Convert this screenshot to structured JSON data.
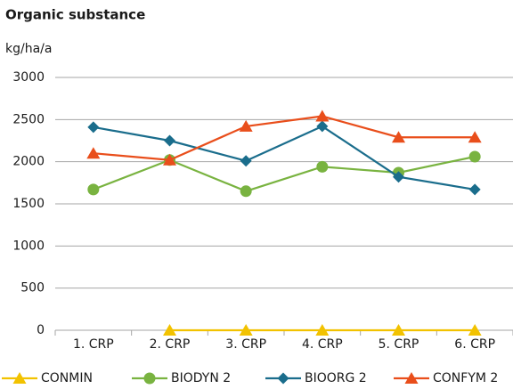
{
  "chart_data": {
    "type": "line",
    "title": "Organic substance",
    "y_label": "kg/ha/a",
    "categories": [
      "1. CRP",
      "2. CRP",
      "3. CRP",
      "4. CRP",
      "5. CRP",
      "6. CRP"
    ],
    "series": [
      {
        "name": "CONMIN",
        "color": "#f2c200",
        "marker": "triangle",
        "values": [
          null,
          0,
          0,
          0,
          0,
          0
        ]
      },
      {
        "name": "BIODYN 2",
        "color": "#79b340",
        "marker": "circle",
        "values": [
          1670,
          2020,
          1650,
          1940,
          1870,
          2060
        ]
      },
      {
        "name": "BIOORG 2",
        "color": "#1a6d8c",
        "marker": "diamond",
        "values": [
          2410,
          2250,
          2010,
          2420,
          1820,
          1670
        ]
      },
      {
        "name": "CONFYM 2",
        "color": "#e94e1b",
        "marker": "triangle",
        "values": [
          2100,
          2020,
          2420,
          2540,
          2290,
          2290
        ]
      }
    ],
    "ylim": [
      0,
      3000
    ],
    "yticks": [
      0,
      500,
      1000,
      1500,
      2000,
      2500,
      3000
    ],
    "grid": true,
    "legend": "bottom"
  }
}
